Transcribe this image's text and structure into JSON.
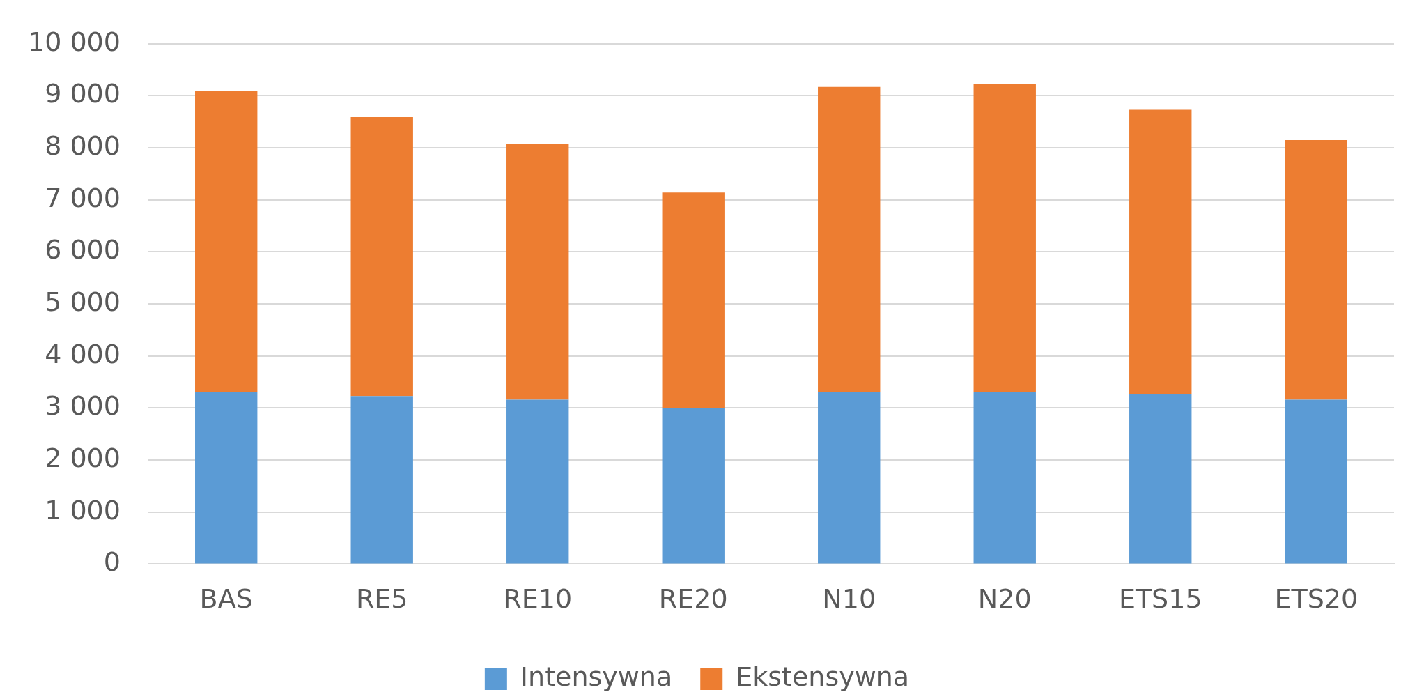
{
  "chart_data": {
    "type": "bar",
    "stacked": true,
    "categories": [
      "BAS",
      "RE5",
      "RE10",
      "RE20",
      "N10",
      "N20",
      "ETS15",
      "ETS20"
    ],
    "series": [
      {
        "name": "Intensywna",
        "color": "#5b9bd5",
        "values": [
          3300,
          3230,
          3160,
          3000,
          3310,
          3310,
          3260,
          3160
        ]
      },
      {
        "name": "Ekstensywna",
        "color": "#ed7d31",
        "values": [
          5800,
          5360,
          4920,
          4140,
          5860,
          5910,
          5470,
          4990
        ]
      }
    ],
    "ylim": [
      0,
      10000
    ],
    "yticks": [
      0,
      {
        "value": 1000,
        "label": "1 000"
      },
      {
        "value": 2000,
        "label": "2 000"
      },
      {
        "value": 3000,
        "label": "3 000"
      },
      {
        "value": 4000,
        "label": "4 000"
      },
      {
        "value": 5000,
        "label": "5 000"
      },
      {
        "value": 6000,
        "label": "6 000"
      },
      {
        "value": 7000,
        "label": "7 000"
      },
      {
        "value": 8000,
        "label": "8 000"
      },
      {
        "value": 9000,
        "label": "9 000"
      },
      {
        "value": 10000,
        "label": "10 000"
      }
    ],
    "grid": "y",
    "legend": "bottom"
  }
}
